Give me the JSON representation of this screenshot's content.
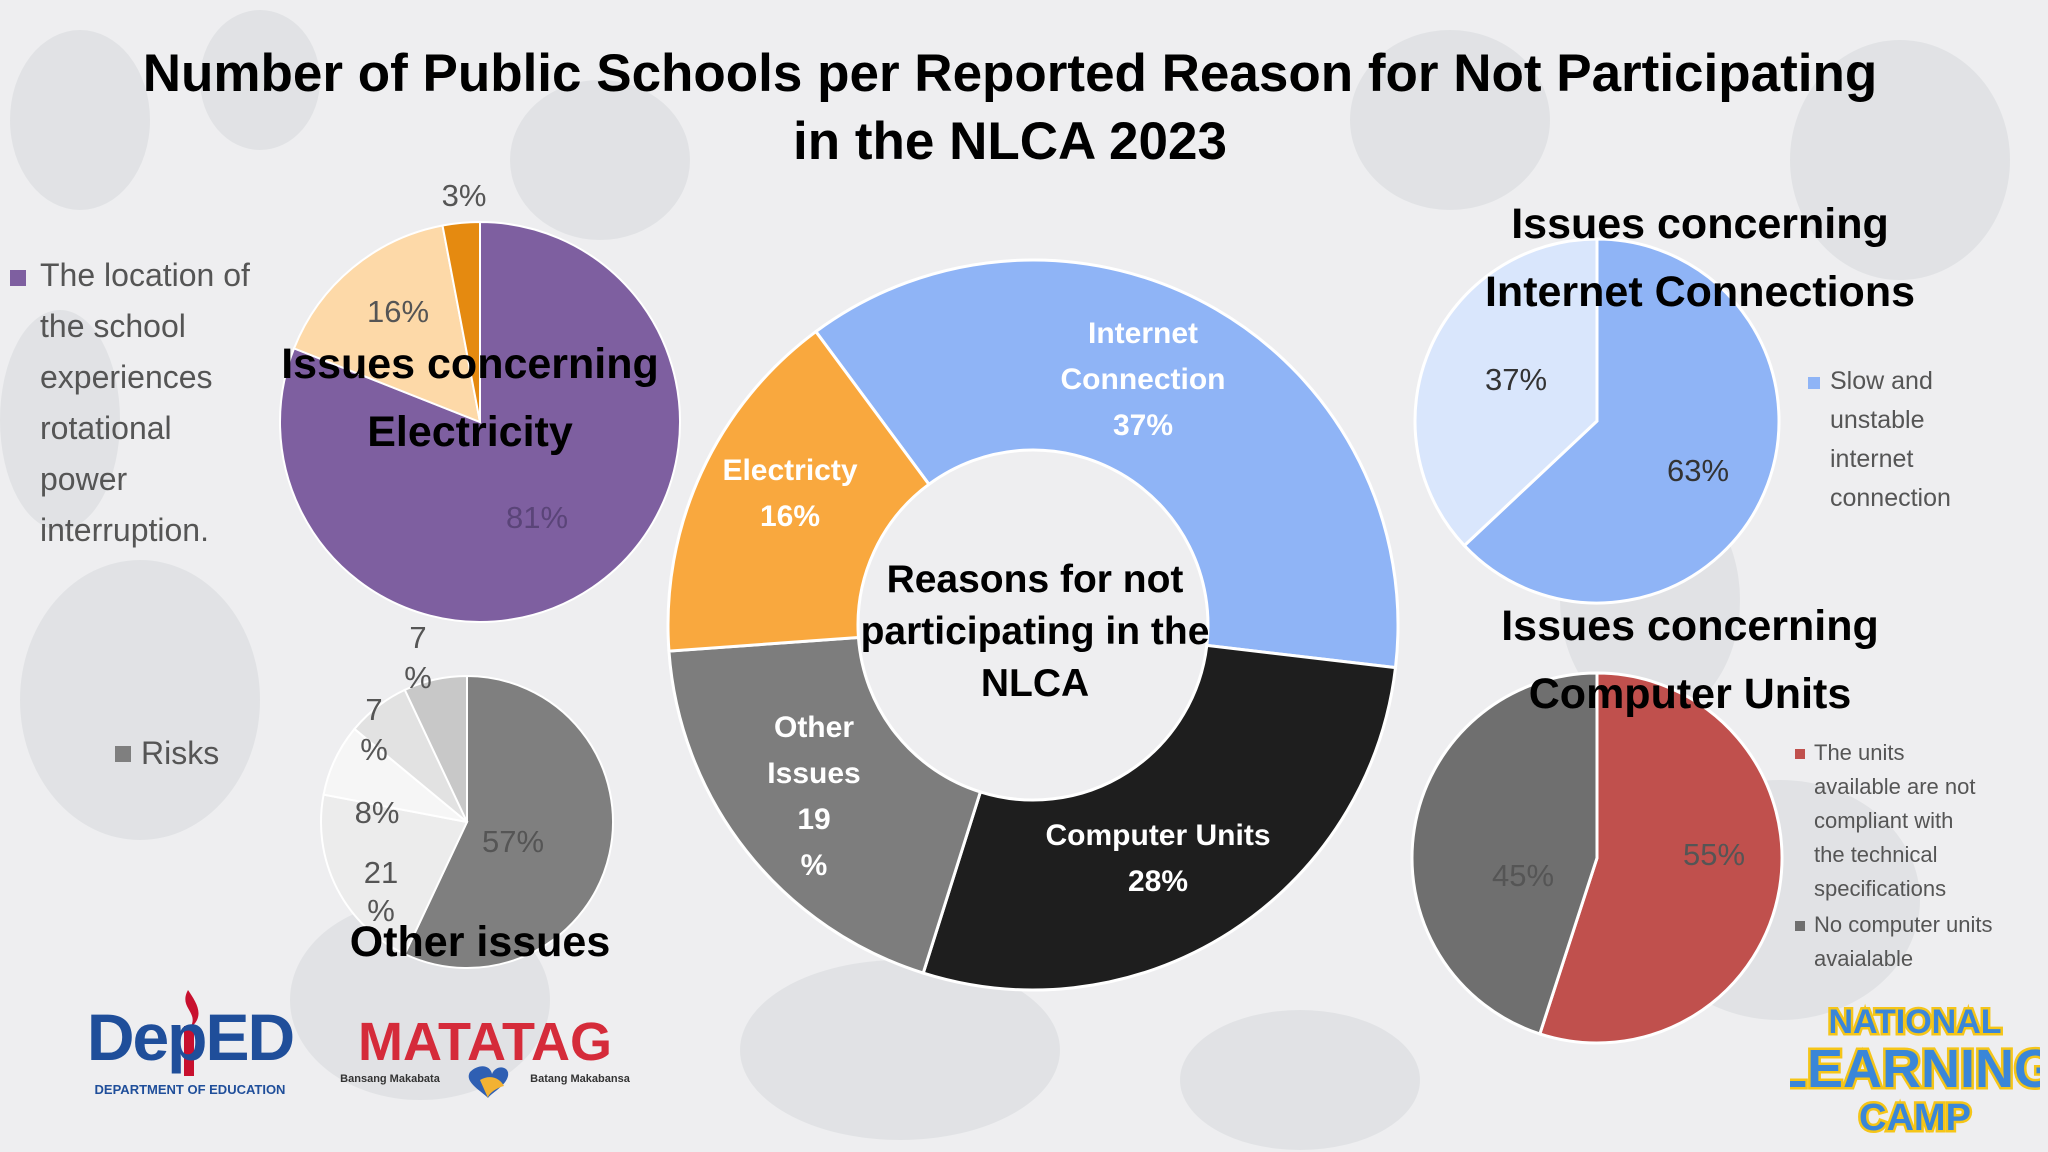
{
  "title": "Number of Public Schools per Reported Reason for Not Participating in the NLCA 2023",
  "chart_data": [
    {
      "type": "pie",
      "donut": true,
      "title": "Reasons for not participating in the NLCA",
      "slices": [
        {
          "label": "Internet Connection",
          "value": 37,
          "display": "37%",
          "color": "#8fb4f6"
        },
        {
          "label": "Computer Units",
          "value": 28,
          "display": "28%",
          "color": "#1e1e1e"
        },
        {
          "label": "Other Issues",
          "value": 19,
          "display": "19 %",
          "color": "#7d7d7d"
        },
        {
          "label": "Electricty",
          "value": 16,
          "display": "16%",
          "color": "#f9a83e"
        }
      ]
    },
    {
      "type": "pie",
      "title": "Issues concerning Electricity",
      "slices": [
        {
          "label": "The location of the school experiences rotational power interruption.",
          "value": 81,
          "display": "81%",
          "color": "#7e5fa0"
        },
        {
          "label": "",
          "value": 16,
          "display": "16%",
          "color": "#fdd9a8"
        },
        {
          "label": "",
          "value": 3,
          "display": "3%",
          "color": "#e58a10"
        }
      ],
      "legend": [
        "The location of the school experiences rotational power interruption."
      ]
    },
    {
      "type": "pie",
      "title": "Issues concerning Internet Connections",
      "slices": [
        {
          "label": "Slow and unstable internet connection",
          "value": 63,
          "display": "63%",
          "color": "#8fb4f6"
        },
        {
          "label": "",
          "value": 37,
          "display": "37%",
          "color": "#d9e6fc"
        }
      ],
      "legend": [
        "Slow and unstable internet connection"
      ]
    },
    {
      "type": "pie",
      "title": "Issues concerning Computer Units",
      "slices": [
        {
          "label": "The units available are not compliant with the technical specifications",
          "value": 55,
          "display": "55%",
          "color": "#c0504d"
        },
        {
          "label": "No computer units avaialable",
          "value": 45,
          "display": "45%",
          "color": "#6f6f6f"
        }
      ],
      "legend": [
        "The units available are not compliant with the technical specifications",
        "No computer units avaialable"
      ]
    },
    {
      "type": "pie",
      "title": "Other issues",
      "slices": [
        {
          "label": "Risks",
          "value": 57,
          "display": "57%",
          "color": "#7f7f7f"
        },
        {
          "label": "",
          "value": 21,
          "display": "21 %",
          "color": "#ececec"
        },
        {
          "label": "",
          "value": 8,
          "display": "8%",
          "color": "#f6f6f6"
        },
        {
          "label": "",
          "value": 7,
          "display": "7 %",
          "color": "#e2e2e2"
        },
        {
          "label": "",
          "value": 7,
          "display": "7 %",
          "color": "#c8c8c8"
        }
      ],
      "legend": [
        "Risks"
      ]
    }
  ],
  "chart_titles": {
    "electricity": [
      "Issues concerning",
      "Electricity"
    ],
    "internet": [
      "Issues concerning",
      "Internet Connections"
    ],
    "computer": [
      "Issues concerning",
      "Computer Units"
    ],
    "other": "Other issues",
    "center": [
      "Reasons for not",
      "participating in the",
      "NLCA"
    ]
  },
  "legends": {
    "electricity": {
      "color": "#7e5fa0",
      "lines": [
        "The location of",
        "the school",
        "experiences",
        "rotational",
        "power",
        "interruption."
      ]
    },
    "internet": {
      "color": "#8fb4f6",
      "lines": [
        "Slow  and",
        "unstable",
        "internet",
        "connection"
      ]
    },
    "computer": [
      {
        "color": "#c0504d",
        "lines": [
          "The units",
          "available are not",
          "compliant with",
          "the technical",
          "specifications"
        ]
      },
      {
        "color": "#6f6f6f",
        "lines": [
          "No computer units",
          "avaialable"
        ]
      }
    ],
    "other": {
      "color": "#7f7f7f",
      "text": "Risks"
    }
  },
  "logos": {
    "deped": {
      "wordmark": "DepED",
      "tagline": "DEPARTMENT OF EDUCATION",
      "color": "#1f4e9a",
      "accent": "#c8102e"
    },
    "matatag": {
      "wordmark": "MATATAG",
      "left_tagline": "Bansang Makabata",
      "right_tagline": "Batang Makabansa",
      "color": "#d52b3a"
    },
    "nlc": {
      "line1": "NATIONAL",
      "line2": "LEARNING",
      "line3": "CAMP",
      "fill": "#3a86d8",
      "outline": "#f5c518"
    }
  }
}
